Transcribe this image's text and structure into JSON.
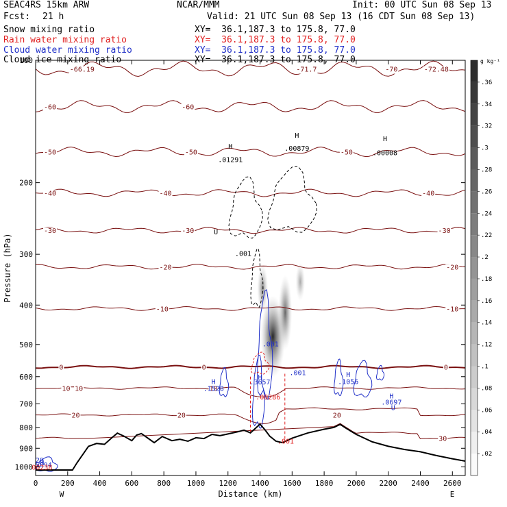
{
  "header": {
    "model": "SEAC4RS 15km ARW",
    "center": "NCAR/MMM",
    "init": "Init: 00 UTC Sun 08 Sep 13",
    "fcst_label": "Fcst:",
    "fcst_value": "21 h",
    "valid": "Valid: 21 UTC Sun 08 Sep 13 (16 CDT Sun 08 Sep 13)",
    "fields": [
      {
        "label": "Snow mixing ratio",
        "color": "#000000",
        "xy": "XY=  36.1,187.3 to 175.8, 77.0"
      },
      {
        "label": "Rain water mixing ratio",
        "color": "#e02020",
        "xy": "XY=  36.1,187.3 to 175.8, 77.0"
      },
      {
        "label": "Cloud water mixing ratio",
        "color": "#2030c8",
        "xy": "XY=  36.1,187.3 to 175.8, 77.0"
      },
      {
        "label": "Cloud ice mixing ratio",
        "color": "#000000",
        "xy": "XY=  36.1,187.3 to 175.8, 77.0"
      }
    ]
  },
  "chart_data": {
    "type": "contour",
    "xlabel": "Distance (km)",
    "ylabel": "Pressure (hPa)",
    "xlim": [
      0,
      2680
    ],
    "ylim": [
      1050,
      100
    ],
    "y_scale": "log",
    "xticks": [
      0,
      200,
      400,
      600,
      800,
      1000,
      1200,
      1400,
      1600,
      1800,
      2000,
      2200,
      2400,
      2600
    ],
    "yticks": [
      100,
      200,
      300,
      400,
      500,
      600,
      700,
      800,
      900,
      1000
    ],
    "endpoints": {
      "left": "W",
      "right": "E"
    },
    "colorbar": {
      "unit": "g kg⁻¹",
      "min": 0,
      "max": 0.38,
      "step": 0.02,
      "tick_labels": [
        ".02",
        ".04",
        ".06",
        ".08",
        ".1",
        ".12",
        ".14",
        ".16",
        ".18",
        ".2",
        ".22",
        ".24",
        ".26",
        ".28",
        ".3",
        ".32",
        ".34",
        ".36"
      ]
    },
    "terrain": [
      [
        0,
        1018
      ],
      [
        230,
        1018
      ],
      [
        260,
        975
      ],
      [
        330,
        890
      ],
      [
        380,
        876
      ],
      [
        430,
        880
      ],
      [
        480,
        845
      ],
      [
        510,
        826
      ],
      [
        550,
        840
      ],
      [
        600,
        862
      ],
      [
        630,
        835
      ],
      [
        660,
        828
      ],
      [
        700,
        850
      ],
      [
        740,
        872
      ],
      [
        790,
        842
      ],
      [
        850,
        862
      ],
      [
        900,
        855
      ],
      [
        950,
        865
      ],
      [
        1000,
        848
      ],
      [
        1050,
        852
      ],
      [
        1100,
        832
      ],
      [
        1150,
        838
      ],
      [
        1200,
        830
      ],
      [
        1260,
        820
      ],
      [
        1300,
        812
      ],
      [
        1340,
        825
      ],
      [
        1370,
        805
      ],
      [
        1400,
        785
      ],
      [
        1430,
        810
      ],
      [
        1460,
        840
      ],
      [
        1500,
        865
      ],
      [
        1540,
        872
      ],
      [
        1600,
        850
      ],
      [
        1700,
        825
      ],
      [
        1800,
        808
      ],
      [
        1860,
        800
      ],
      [
        1900,
        786
      ],
      [
        1940,
        805
      ],
      [
        2000,
        832
      ],
      [
        2100,
        868
      ],
      [
        2200,
        890
      ],
      [
        2300,
        906
      ],
      [
        2400,
        918
      ],
      [
        2500,
        938
      ],
      [
        2600,
        955
      ],
      [
        2680,
        968
      ]
    ],
    "temperature_contours": [
      {
        "value": -72,
        "p": 105,
        "labels": [
          {
            "x": 290,
            "text": "-66.19"
          },
          {
            "x": 1690,
            "text": "-71.7"
          },
          {
            "x": 2220,
            "text": "-70"
          },
          {
            "x": 2500,
            "text": "-72.48"
          }
        ]
      },
      {
        "value": -60,
        "p": 130,
        "labels": [
          {
            "x": 90,
            "text": "-60"
          },
          {
            "x": 950,
            "text": "-60"
          }
        ]
      },
      {
        "value": -50,
        "p": 168,
        "labels": [
          {
            "x": 90,
            "text": "-50"
          },
          {
            "x": 970,
            "text": "-50"
          },
          {
            "x": 1940,
            "text": "-50"
          }
        ]
      },
      {
        "value": -40,
        "p": 212,
        "labels": [
          {
            "x": 90,
            "text": "-40"
          },
          {
            "x": 810,
            "text": "-40"
          },
          {
            "x": 2450,
            "text": "-40"
          }
        ]
      },
      {
        "value": -30,
        "p": 262,
        "labels": [
          {
            "x": 90,
            "text": "-30"
          },
          {
            "x": 950,
            "text": "-30"
          },
          {
            "x": 2550,
            "text": "-30"
          }
        ]
      },
      {
        "value": -20,
        "p": 322,
        "labels": [
          {
            "x": 810,
            "text": "-20"
          },
          {
            "x": 2600,
            "text": "-20"
          }
        ]
      },
      {
        "value": -10,
        "p": 408,
        "labels": [
          {
            "x": 790,
            "text": "-10"
          },
          {
            "x": 2600,
            "text": "-10"
          }
        ]
      },
      {
        "value": 0,
        "p": 568,
        "labels": [
          {
            "x": 160,
            "text": "0"
          },
          {
            "x": 1050,
            "text": "0"
          },
          {
            "x": 2560,
            "text": "0"
          }
        ]
      },
      {
        "value": 10,
        "p": 640,
        "labels": [
          {
            "x": 190,
            "text": "10"
          },
          {
            "x": 270,
            "text": "10"
          },
          {
            "x": 1110,
            "text": "10"
          }
        ]
      },
      {
        "value": 20,
        "p": 745,
        "labels": [
          {
            "x": 910,
            "text": "20"
          },
          {
            "x": 1880,
            "text": "20"
          },
          {
            "x": 250,
            "text": "20"
          }
        ]
      },
      {
        "value": 30,
        "p": 850,
        "labels": [
          {
            "x": 2540,
            "text": "30"
          }
        ]
      }
    ],
    "annotations": [
      {
        "x": 1215,
        "p": 165,
        "text": "H",
        "color": "#000000"
      },
      {
        "x": 1215,
        "p": 178,
        "text": ".01291",
        "color": "#000000"
      },
      {
        "x": 1630,
        "p": 155,
        "text": "H",
        "color": "#000000"
      },
      {
        "x": 1630,
        "p": 167,
        "text": ".00879",
        "color": "#000000"
      },
      {
        "x": 2180,
        "p": 158,
        "text": "H",
        "color": "#000000"
      },
      {
        "x": 2180,
        "p": 171,
        "text": ".00008",
        "color": "#000000"
      },
      {
        "x": 1295,
        "p": 303,
        "text": ".001",
        "color": "#000000"
      },
      {
        "x": 1125,
        "p": 268,
        "text": "U",
        "color": "#000000"
      },
      {
        "x": 1465,
        "p": 505,
        "text": ".001",
        "color": "#2030c8"
      },
      {
        "x": 1635,
        "p": 595,
        "text": ".001",
        "color": "#2030c8"
      },
      {
        "x": 1110,
        "p": 625,
        "text": "H",
        "color": "#2030c8"
      },
      {
        "x": 1110,
        "p": 650,
        "text": ".1528",
        "color": "#2030c8"
      },
      {
        "x": 1400,
        "p": 610,
        "text": "H",
        "color": "#2030c8"
      },
      {
        "x": 1400,
        "p": 627,
        "text": ".3657",
        "color": "#2030c8"
      },
      {
        "x": 1450,
        "p": 683,
        "text": ".08286",
        "color": "#e02020"
      },
      {
        "x": 1950,
        "p": 600,
        "text": "H",
        "color": "#2030c8"
      },
      {
        "x": 1950,
        "p": 625,
        "text": ".1056",
        "color": "#2030c8"
      },
      {
        "x": 2220,
        "p": 678,
        "text": "H",
        "color": "#2030c8"
      },
      {
        "x": 2220,
        "p": 703,
        "text": ".0697",
        "color": "#2030c8"
      },
      {
        "x": 2230,
        "p": 725,
        "text": "U",
        "color": "#2030c8"
      },
      {
        "x": 1560,
        "p": 877,
        "text": ".001",
        "color": "#e02020"
      },
      {
        "x": 25,
        "p": 975,
        "text": "29",
        "color": "#2030c8"
      },
      {
        "x": 40,
        "p": 990,
        "text": "H",
        "color": "#2030c8"
      },
      {
        "x": 50,
        "p": 1002,
        "text": "5894",
        "color": "#2030c8"
      },
      {
        "x": 40,
        "p": 1015,
        "text": "00238",
        "color": "#e02020"
      }
    ],
    "snow_max": {
      "x": 1480,
      "p": 460,
      "value": 0.38
    }
  }
}
